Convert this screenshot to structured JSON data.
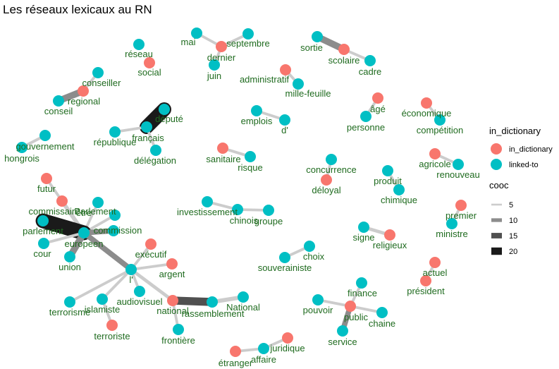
{
  "title": "Les réseaux lexicaux au RN",
  "colors": {
    "in_dictionary": "#F8766D",
    "linked_to": "#00BFC4",
    "label": "#1F6B1F",
    "edge_levels": [
      "#CCCCCC",
      "#8C8C8C",
      "#505050",
      "#1A1A1A"
    ]
  },
  "legend": {
    "color_title": "in_dictionary",
    "color_items": [
      {
        "label": "in_dictionary",
        "type": "in_dictionary"
      },
      {
        "label": "linked-to",
        "type": "linked_to"
      }
    ],
    "width_title": "cooc",
    "width_items": [
      {
        "label": "5",
        "value": 5
      },
      {
        "label": "10",
        "value": 10
      },
      {
        "label": "15",
        "value": 15
      },
      {
        "label": "20",
        "value": 20
      }
    ]
  },
  "nodes": [
    {
      "id": "mai",
      "label": "mai",
      "type": "linked_to"
    },
    {
      "id": "dernier",
      "label": "dernier",
      "type": "in_dictionary"
    },
    {
      "id": "septembre",
      "label": "septembre",
      "type": "linked_to"
    },
    {
      "id": "juin",
      "label": "juin",
      "type": "linked_to"
    },
    {
      "id": "sortie",
      "label": "sortie",
      "type": "linked_to"
    },
    {
      "id": "scolaire",
      "label": "scolaire",
      "type": "in_dictionary"
    },
    {
      "id": "cadre",
      "label": "cadre",
      "type": "linked_to"
    },
    {
      "id": "reseau",
      "label": "réseau",
      "type": "linked_to"
    },
    {
      "id": "social",
      "label": "social",
      "type": "in_dictionary"
    },
    {
      "id": "administratif",
      "label": "administratif",
      "type": "in_dictionary"
    },
    {
      "id": "millefeuille",
      "label": "mille-feuille",
      "type": "linked_to"
    },
    {
      "id": "conseiller",
      "label": "conseiller",
      "type": "linked_to"
    },
    {
      "id": "regional",
      "label": "regional",
      "type": "in_dictionary"
    },
    {
      "id": "conseil",
      "label": "conseil",
      "type": "linked_to"
    },
    {
      "id": "age",
      "label": "âgé",
      "type": "in_dictionary"
    },
    {
      "id": "personne",
      "label": "personne",
      "type": "linked_to"
    },
    {
      "id": "economique",
      "label": "économique",
      "type": "in_dictionary"
    },
    {
      "id": "competition",
      "label": "compétition",
      "type": "linked_to"
    },
    {
      "id": "depute",
      "label": "député",
      "type": "linked_to"
    },
    {
      "id": "francais",
      "label": "français",
      "type": "linked_to"
    },
    {
      "id": "republique",
      "label": "république",
      "type": "linked_to"
    },
    {
      "id": "delegation",
      "label": "délégation",
      "type": "linked_to"
    },
    {
      "id": "emplois",
      "label": "emplois",
      "type": "linked_to"
    },
    {
      "id": "d",
      "label": "d'",
      "type": "linked_to"
    },
    {
      "id": "gouvernement",
      "label": "gouvernement",
      "type": "linked_to"
    },
    {
      "id": "hongrois",
      "label": "hongrois",
      "type": "linked_to"
    },
    {
      "id": "sanitaire",
      "label": "sanitaire",
      "type": "in_dictionary"
    },
    {
      "id": "risque",
      "label": "risque",
      "type": "linked_to"
    },
    {
      "id": "concurrence",
      "label": "concurrence",
      "type": "linked_to"
    },
    {
      "id": "deloyal",
      "label": "déloyal",
      "type": "in_dictionary"
    },
    {
      "id": "produit",
      "label": "produit",
      "type": "linked_to"
    },
    {
      "id": "chimique",
      "label": "chimique",
      "type": "linked_to"
    },
    {
      "id": "agricole",
      "label": "agricole",
      "type": "in_dictionary"
    },
    {
      "id": "renouveau",
      "label": "renouveau",
      "type": "linked_to"
    },
    {
      "id": "futur",
      "label": "futur",
      "type": "in_dictionary"
    },
    {
      "id": "commissaire",
      "label": "commissaire",
      "type": "in_dictionary"
    },
    {
      "id": "etre",
      "label": "être",
      "type": "linked_to"
    },
    {
      "id": "parlement2",
      "label": "Parlement",
      "type": "linked_to"
    },
    {
      "id": "parlement",
      "label": "parlement",
      "type": "linked_to"
    },
    {
      "id": "commission",
      "label": "commission",
      "type": "linked_to"
    },
    {
      "id": "europeen",
      "label": "europeen",
      "type": "linked_to"
    },
    {
      "id": "cour",
      "label": "cour",
      "type": "linked_to"
    },
    {
      "id": "union",
      "label": "union",
      "type": "linked_to"
    },
    {
      "id": "investissement",
      "label": "investissement",
      "type": "linked_to"
    },
    {
      "id": "chinoisgroupe_a",
      "label": "chinois",
      "type": "linked_to"
    },
    {
      "id": "groupe",
      "label": "groupe",
      "type": "linked_to"
    },
    {
      "id": "premier",
      "label": "premier",
      "type": "in_dictionary"
    },
    {
      "id": "ministre",
      "label": "ministre",
      "type": "linked_to"
    },
    {
      "id": "signe",
      "label": "signe",
      "type": "linked_to"
    },
    {
      "id": "religieux",
      "label": "religieux",
      "type": "in_dictionary"
    },
    {
      "id": "executif",
      "label": "exécutif",
      "type": "in_dictionary"
    },
    {
      "id": "argent",
      "label": "argent",
      "type": "in_dictionary"
    },
    {
      "id": "l",
      "label": "l'",
      "type": "linked_to"
    },
    {
      "id": "choix",
      "label": "choix",
      "type": "linked_to"
    },
    {
      "id": "souverainiste",
      "label": "souverainiste",
      "type": "linked_to"
    },
    {
      "id": "actuel",
      "label": "actuel",
      "type": "in_dictionary"
    },
    {
      "id": "president",
      "label": "président",
      "type": "in_dictionary"
    },
    {
      "id": "terrorisme",
      "label": "terrorisme",
      "type": "linked_to"
    },
    {
      "id": "islamiste",
      "label": "islamiste",
      "type": "linked_to"
    },
    {
      "id": "audiovisuel",
      "label": "audiovisuel",
      "type": "linked_to"
    },
    {
      "id": "terroriste",
      "label": "terroriste",
      "type": "in_dictionary"
    },
    {
      "id": "national",
      "label": "national",
      "type": "in_dictionary"
    },
    {
      "id": "rassemblement",
      "label": "rassemblement",
      "type": "linked_to"
    },
    {
      "id": "national2",
      "label": "National",
      "type": "linked_to"
    },
    {
      "id": "frontiere",
      "label": "frontière",
      "type": "linked_to"
    },
    {
      "id": "finance",
      "label": "finance",
      "type": "linked_to"
    },
    {
      "id": "pouvoir",
      "label": "pouvoir",
      "type": "linked_to"
    },
    {
      "id": "public",
      "label": "public",
      "type": "in_dictionary"
    },
    {
      "id": "chaine",
      "label": "chaine",
      "type": "linked_to"
    },
    {
      "id": "service",
      "label": "service",
      "type": "linked_to"
    },
    {
      "id": "etranger",
      "label": "étranger",
      "type": "in_dictionary"
    },
    {
      "id": "affaire",
      "label": "affaire",
      "type": "linked_to"
    },
    {
      "id": "juridique",
      "label": "juridique",
      "type": "in_dictionary"
    }
  ],
  "edges": [
    {
      "from": "mai",
      "to": "dernier",
      "cooc": 4
    },
    {
      "from": "dernier",
      "to": "septembre",
      "cooc": 4
    },
    {
      "from": "dernier",
      "to": "juin",
      "cooc": 4
    },
    {
      "from": "sortie",
      "to": "scolaire",
      "cooc": 10
    },
    {
      "from": "scolaire",
      "to": "cadre",
      "cooc": 4
    },
    {
      "from": "administratif",
      "to": "millefeuille",
      "cooc": 4
    },
    {
      "from": "conseiller",
      "to": "regional",
      "cooc": 4
    },
    {
      "from": "regional",
      "to": "conseil",
      "cooc": 10
    },
    {
      "from": "age",
      "to": "personne",
      "cooc": 4
    },
    {
      "from": "economique",
      "to": "competition",
      "cooc": 4
    },
    {
      "from": "depute",
      "to": "francais",
      "cooc": 21
    },
    {
      "from": "francais",
      "to": "republique",
      "cooc": 4
    },
    {
      "from": "francais",
      "to": "delegation",
      "cooc": 4
    },
    {
      "from": "emplois",
      "to": "d",
      "cooc": 4
    },
    {
      "from": "gouvernement",
      "to": "hongrois",
      "cooc": 4
    },
    {
      "from": "sanitaire",
      "to": "risque",
      "cooc": 4
    },
    {
      "from": "concurrence",
      "to": "deloyal",
      "cooc": 4
    },
    {
      "from": "produit",
      "to": "chimique",
      "cooc": 4
    },
    {
      "from": "agricole",
      "to": "renouveau",
      "cooc": 4
    },
    {
      "from": "futur",
      "to": "commissaire",
      "cooc": 4
    },
    {
      "from": "commissaire",
      "to": "europeen",
      "cooc": 6
    },
    {
      "from": "etre",
      "to": "europeen",
      "cooc": 4
    },
    {
      "from": "parlement2",
      "to": "europeen",
      "cooc": 4
    },
    {
      "from": "parlement",
      "to": "europeen",
      "cooc": 22
    },
    {
      "from": "commission",
      "to": "europeen",
      "cooc": 8
    },
    {
      "from": "cour",
      "to": "europeen",
      "cooc": 4
    },
    {
      "from": "union",
      "to": "europeen",
      "cooc": 10
    },
    {
      "from": "europeen",
      "to": "l",
      "cooc": 8
    },
    {
      "from": "investissement",
      "to": "chinoisgroupe_a",
      "cooc": 4
    },
    {
      "from": "chinoisgroupe_a",
      "to": "groupe",
      "cooc": 4
    },
    {
      "from": "premier",
      "to": "ministre",
      "cooc": 4
    },
    {
      "from": "signe",
      "to": "religieux",
      "cooc": 5
    },
    {
      "from": "executif",
      "to": "l",
      "cooc": 4
    },
    {
      "from": "argent",
      "to": "l",
      "cooc": 4
    },
    {
      "from": "l",
      "to": "terrorisme",
      "cooc": 4
    },
    {
      "from": "l",
      "to": "islamiste",
      "cooc": 4
    },
    {
      "from": "l",
      "to": "audiovisuel",
      "cooc": 4
    },
    {
      "from": "l",
      "to": "national",
      "cooc": 5
    },
    {
      "from": "islamiste",
      "to": "terroriste",
      "cooc": 4
    },
    {
      "from": "choix",
      "to": "souverainiste",
      "cooc": 4
    },
    {
      "from": "actuel",
      "to": "president",
      "cooc": 4
    },
    {
      "from": "national",
      "to": "rassemblement",
      "cooc": 12
    },
    {
      "from": "rassemblement",
      "to": "national2",
      "cooc": 6
    },
    {
      "from": "national",
      "to": "frontiere",
      "cooc": 4
    },
    {
      "from": "finance",
      "to": "public",
      "cooc": 4
    },
    {
      "from": "pouvoir",
      "to": "public",
      "cooc": 4
    },
    {
      "from": "public",
      "to": "chaine",
      "cooc": 4
    },
    {
      "from": "public",
      "to": "service",
      "cooc": 8
    },
    {
      "from": "etranger",
      "to": "affaire",
      "cooc": 4
    },
    {
      "from": "affaire",
      "to": "juridique",
      "cooc": 4
    }
  ]
}
